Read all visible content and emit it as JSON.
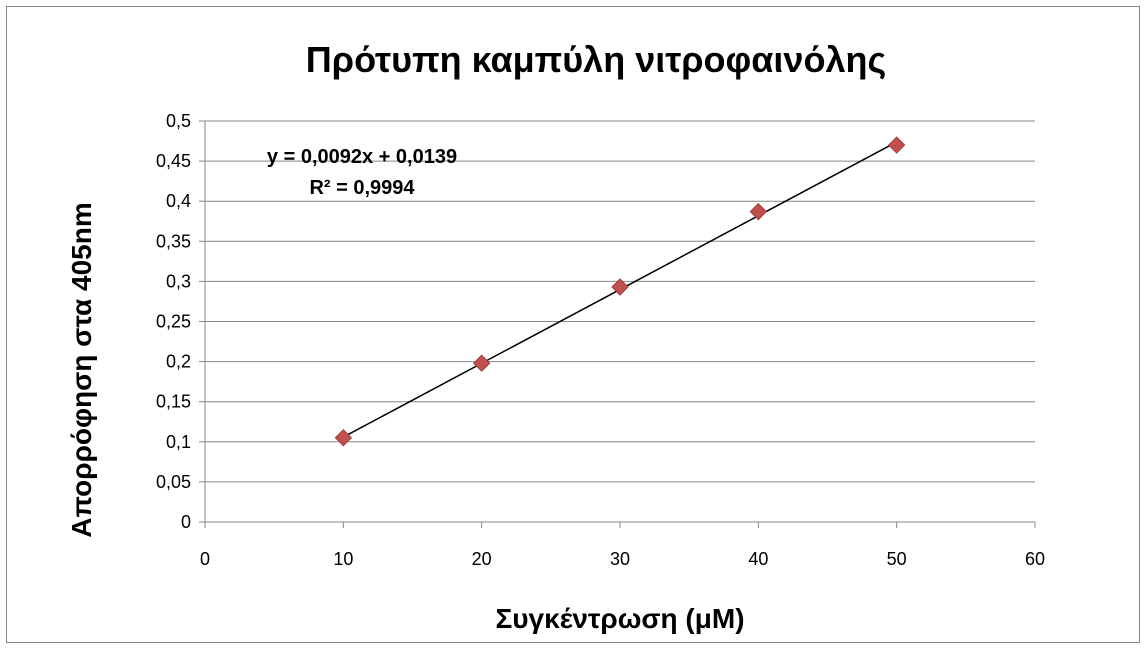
{
  "chart_data": {
    "type": "scatter",
    "title": "Πρότυπη καμπύλη νιτροφαινόλης",
    "xlabel": "Συγκέντρωση (μΜ)",
    "ylabel": "Απορρόφηση στα 405nm",
    "xlim": [
      0,
      60
    ],
    "ylim": [
      0,
      0.5
    ],
    "x_ticks": [
      "0",
      "10",
      "20",
      "30",
      "40",
      "50",
      "60"
    ],
    "x_tick_values": [
      0,
      10,
      20,
      30,
      40,
      50,
      60
    ],
    "y_ticks": [
      "0",
      "0,05",
      "0,1",
      "0,15",
      "0,2",
      "0,25",
      "0,3",
      "0,35",
      "0,4",
      "0,45",
      "0,5"
    ],
    "y_tick_values": [
      0,
      0.05,
      0.1,
      0.15,
      0.2,
      0.25,
      0.3,
      0.35,
      0.4,
      0.45,
      0.5
    ],
    "grid": "horizontal",
    "legend": "none",
    "series": [
      {
        "x": [
          10,
          20,
          30,
          40,
          50
        ],
        "y": [
          0.105,
          0.198,
          0.293,
          0.387,
          0.47
        ],
        "marker": "diamond",
        "color": "#c0504d"
      }
    ],
    "trendline": {
      "type": "linear",
      "slope": 0.0092,
      "intercept": 0.0139,
      "x_range": [
        10,
        50
      ],
      "color": "#000000"
    },
    "annotations": {
      "equation": "y = 0,0092x + 0,0139",
      "r_squared": "R² = 0,9994"
    }
  }
}
